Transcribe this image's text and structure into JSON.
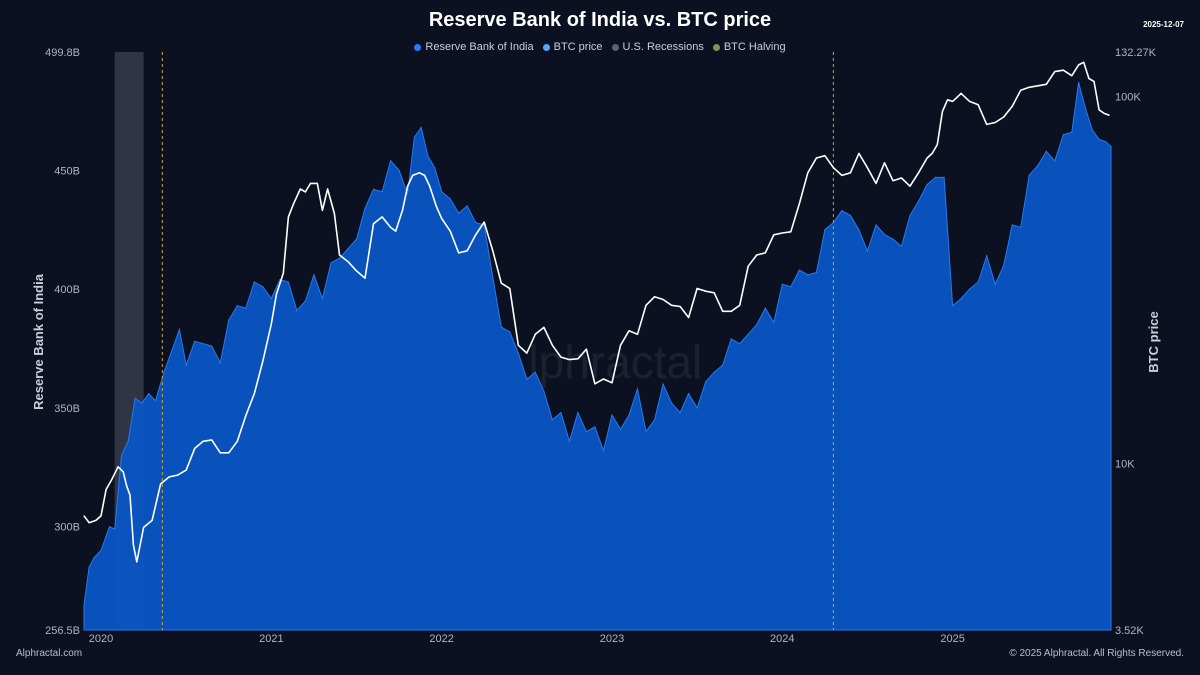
{
  "header": {
    "title": "Reserve Bank of India vs. BTC price",
    "date": "2025-12-07"
  },
  "legend": [
    {
      "label": "Reserve Bank of India",
      "color": "#2f7bf5"
    },
    {
      "label": "BTC price",
      "color": "#5aa8ff"
    },
    {
      "label": "U.S. Recessions",
      "color": "#5b6272"
    },
    {
      "label": "BTC Halving",
      "color": "#8a8f52"
    }
  ],
  "footer": {
    "source": "Alphractal.com",
    "copyright": "© 2025 Alphractal. All Rights Reserved."
  },
  "watermark": "Alphractal",
  "chart_data": {
    "type": "area",
    "title": "Reserve Bank of India vs. BTC price",
    "y_left_label": "Reserve Bank of India",
    "y_right_label": "BTC price",
    "y_left_ticks": [
      "499.8B",
      "450B",
      "400B",
      "350B",
      "300B",
      "256.5B"
    ],
    "y_left_tick_values": [
      499.8,
      450,
      400,
      350,
      300,
      256.5
    ],
    "y_left_range": [
      256.5,
      499.8
    ],
    "y_right_ticks": [
      "132.27K",
      "100K",
      "10K",
      "3.52K"
    ],
    "y_right_tick_values": [
      132270,
      100000,
      10000,
      3520
    ],
    "y_right_range": [
      3520,
      132270
    ],
    "y_right_scale": "log",
    "x_ticks": [
      "2020",
      "2021",
      "2022",
      "2023",
      "2024",
      "2025"
    ],
    "x_tick_values": [
      2020.0,
      2021.0,
      2022.0,
      2023.0,
      2024.0,
      2025.0
    ],
    "x_range": [
      2019.9,
      2025.93
    ],
    "grid": false,
    "legend_position": "top-center",
    "series": [
      {
        "name": "Reserve Bank of India",
        "kind": "area",
        "color": "#0a56c4",
        "x": [
          2019.9,
          2019.93,
          2019.96,
          2020.0,
          2020.05,
          2020.08,
          2020.12,
          2020.16,
          2020.2,
          2020.24,
          2020.28,
          2020.32,
          2020.37,
          2020.42,
          2020.46,
          2020.5,
          2020.55,
          2020.6,
          2020.65,
          2020.7,
          2020.75,
          2020.8,
          2020.85,
          2020.9,
          2020.95,
          2021.0,
          2021.05,
          2021.1,
          2021.15,
          2021.2,
          2021.25,
          2021.3,
          2021.35,
          2021.4,
          2021.45,
          2021.5,
          2021.55,
          2021.6,
          2021.65,
          2021.7,
          2021.75,
          2021.8,
          2021.84,
          2021.88,
          2021.92,
          2021.96,
          2022.0,
          2022.05,
          2022.1,
          2022.15,
          2022.2,
          2022.25,
          2022.3,
          2022.35,
          2022.4,
          2022.45,
          2022.5,
          2022.55,
          2022.6,
          2022.65,
          2022.7,
          2022.75,
          2022.8,
          2022.85,
          2022.9,
          2022.95,
          2023.0,
          2023.05,
          2023.1,
          2023.15,
          2023.2,
          2023.25,
          2023.3,
          2023.35,
          2023.4,
          2023.45,
          2023.5,
          2023.55,
          2023.6,
          2023.65,
          2023.7,
          2023.75,
          2023.8,
          2023.85,
          2023.9,
          2023.95,
          2024.0,
          2024.05,
          2024.1,
          2024.15,
          2024.2,
          2024.25,
          2024.3,
          2024.35,
          2024.4,
          2024.45,
          2024.5,
          2024.55,
          2024.6,
          2024.65,
          2024.7,
          2024.75,
          2024.8,
          2024.85,
          2024.9,
          2024.95,
          2025.0,
          2025.05,
          2025.1,
          2025.15,
          2025.2,
          2025.25,
          2025.3,
          2025.35,
          2025.4,
          2025.45,
          2025.5,
          2025.55,
          2025.6,
          2025.65,
          2025.7,
          2025.74,
          2025.78,
          2025.82,
          2025.86,
          2025.9,
          2025.93
        ],
        "values": [
          267,
          283,
          287,
          290,
          300,
          299,
          330,
          336,
          354,
          352,
          356,
          353,
          365,
          375,
          383,
          368,
          378,
          377,
          376,
          369,
          387,
          393,
          392,
          403,
          401,
          396,
          404,
          403,
          391,
          395,
          406,
          396,
          411,
          413,
          417,
          421,
          434,
          442,
          441,
          454,
          450,
          440,
          464,
          468,
          456,
          451,
          441,
          438,
          432,
          435,
          428,
          427,
          405,
          384,
          382,
          373,
          362,
          365,
          357,
          345,
          348,
          336,
          348,
          340,
          342,
          332,
          347,
          341,
          347,
          358,
          340,
          345,
          360,
          352,
          348,
          356,
          350,
          361,
          365,
          368,
          379,
          377,
          381,
          385,
          392,
          386,
          402,
          401,
          408,
          406,
          407,
          425,
          428,
          433,
          431,
          425,
          416,
          427,
          423,
          421,
          418,
          431,
          437,
          444,
          447,
          447,
          393,
          396,
          400,
          403,
          414,
          402,
          410,
          427,
          426,
          448,
          452,
          458,
          454,
          465,
          466,
          487,
          476,
          467,
          463,
          462,
          460
        ]
      },
      {
        "name": "BTC price",
        "kind": "line",
        "color": "#ffffff",
        "x": [
          2019.9,
          2019.93,
          2019.97,
          2020.0,
          2020.03,
          2020.06,
          2020.1,
          2020.13,
          2020.15,
          2020.17,
          2020.19,
          2020.21,
          2020.25,
          2020.3,
          2020.35,
          2020.4,
          2020.45,
          2020.5,
          2020.55,
          2020.6,
          2020.65,
          2020.7,
          2020.75,
          2020.8,
          2020.85,
          2020.9,
          2020.95,
          2021.0,
          2021.03,
          2021.07,
          2021.1,
          2021.13,
          2021.17,
          2021.2,
          2021.23,
          2021.27,
          2021.3,
          2021.33,
          2021.37,
          2021.4,
          2021.45,
          2021.5,
          2021.55,
          2021.6,
          2021.65,
          2021.7,
          2021.73,
          2021.77,
          2021.8,
          2021.83,
          2021.87,
          2021.9,
          2021.93,
          2021.97,
          2022.0,
          2022.05,
          2022.1,
          2022.15,
          2022.2,
          2022.25,
          2022.3,
          2022.35,
          2022.4,
          2022.45,
          2022.5,
          2022.55,
          2022.6,
          2022.65,
          2022.7,
          2022.75,
          2022.8,
          2022.85,
          2022.9,
          2022.95,
          2023.0,
          2023.05,
          2023.1,
          2023.15,
          2023.2,
          2023.25,
          2023.3,
          2023.35,
          2023.4,
          2023.45,
          2023.5,
          2023.55,
          2023.6,
          2023.65,
          2023.7,
          2023.75,
          2023.8,
          2023.85,
          2023.9,
          2023.95,
          2024.0,
          2024.05,
          2024.1,
          2024.15,
          2024.2,
          2024.25,
          2024.3,
          2024.35,
          2024.4,
          2024.45,
          2024.5,
          2024.55,
          2024.6,
          2024.65,
          2024.7,
          2024.75,
          2024.8,
          2024.85,
          2024.88,
          2024.91,
          2024.94,
          2024.97,
          2025.0,
          2025.05,
          2025.1,
          2025.15,
          2025.2,
          2025.25,
          2025.3,
          2025.35,
          2025.4,
          2025.45,
          2025.5,
          2025.55,
          2025.6,
          2025.65,
          2025.7,
          2025.74,
          2025.77,
          2025.8,
          2025.83,
          2025.86,
          2025.89,
          2025.92
        ],
        "values": [
          7200,
          6900,
          7000,
          7200,
          8500,
          9000,
          9800,
          9500,
          8700,
          8200,
          6000,
          5400,
          6700,
          7000,
          8800,
          9200,
          9300,
          9600,
          11000,
          11500,
          11600,
          10700,
          10700,
          11500,
          13500,
          15500,
          19000,
          24000,
          29000,
          33000,
          47000,
          51000,
          56000,
          55000,
          58000,
          58000,
          49000,
          56000,
          48000,
          37000,
          35500,
          33500,
          32000,
          45000,
          47000,
          44000,
          43000,
          49000,
          57000,
          61000,
          62000,
          61000,
          57000,
          50000,
          46500,
          43000,
          37500,
          38000,
          42000,
          45500,
          38000,
          31000,
          30000,
          21000,
          20000,
          22500,
          23500,
          21000,
          19500,
          19200,
          19300,
          20500,
          16500,
          17000,
          16600,
          21000,
          23000,
          22500,
          27000,
          28500,
          28000,
          27000,
          26800,
          25000,
          30000,
          29500,
          29200,
          26000,
          26000,
          27000,
          34500,
          37000,
          37500,
          42000,
          42500,
          42800,
          51000,
          62000,
          68000,
          69000,
          64000,
          61000,
          62000,
          70000,
          64000,
          58000,
          66000,
          59000,
          60000,
          57000,
          62000,
          68000,
          70000,
          74000,
          91000,
          98000,
          97000,
          102000,
          97000,
          95000,
          84000,
          85000,
          88000,
          94000,
          104000,
          106000,
          107000,
          108000,
          117000,
          118000,
          114000,
          122000,
          124000,
          112000,
          110000,
          92000,
          90000,
          89000
        ]
      }
    ],
    "recessions": [
      {
        "start": 2020.08,
        "end": 2020.25
      }
    ],
    "halvings": [
      2020.36,
      2024.3
    ]
  }
}
